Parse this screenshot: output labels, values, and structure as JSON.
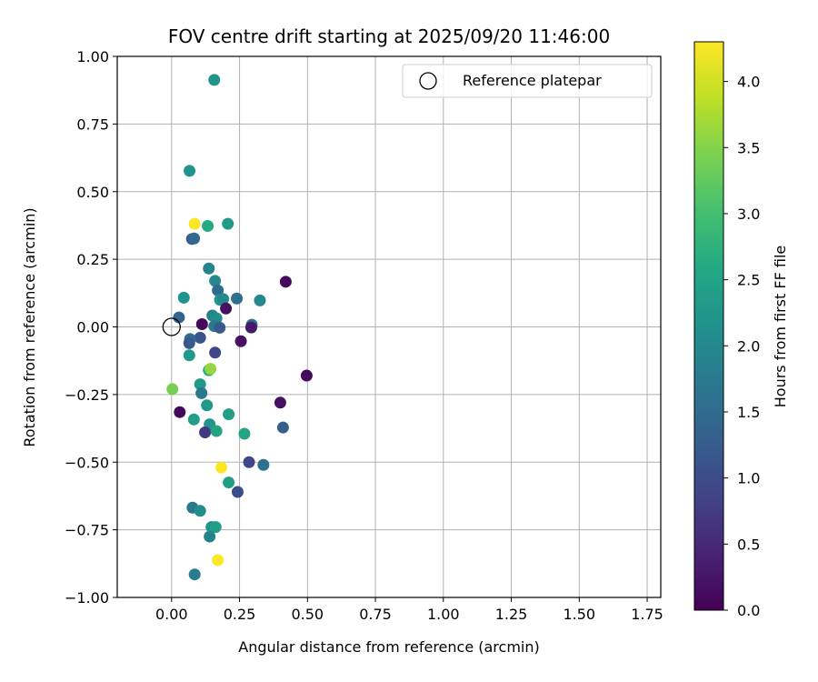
{
  "chart_data": {
    "type": "scatter",
    "title": "FOV centre drift starting at 2025/09/20 11:46:00",
    "xlabel": "Angular distance from reference (arcmin)",
    "ylabel": "Rotation from reference (arcmin)",
    "xlim": [
      -0.2,
      1.8
    ],
    "ylim": [
      -1.0,
      1.0
    ],
    "xticks": [
      0.0,
      0.25,
      0.5,
      0.75,
      1.0,
      1.25,
      1.5,
      1.75
    ],
    "xtick_labels": [
      "0.00",
      "0.25",
      "0.50",
      "0.75",
      "1.00",
      "1.25",
      "1.50",
      "1.75"
    ],
    "yticks": [
      -1.0,
      -0.75,
      -0.5,
      -0.25,
      0.0,
      0.25,
      0.5,
      0.75,
      1.0
    ],
    "ytick_labels": [
      "−1.00",
      "−0.75",
      "−0.50",
      "−0.25",
      "0.00",
      "0.25",
      "0.50",
      "0.75",
      "1.00"
    ],
    "grid": true,
    "legend": {
      "position": "top-right",
      "entries": [
        "Reference platepar"
      ]
    },
    "reference_point": {
      "x": 0.0,
      "y": 0.0,
      "label": "Reference platepar"
    },
    "colorbar": {
      "label": "Hours from first FF file",
      "colormap": "viridis",
      "range": [
        0.0,
        4.3
      ],
      "ticks": [
        0.0,
        0.5,
        1.0,
        1.5,
        2.0,
        2.5,
        3.0,
        3.5,
        4.0
      ],
      "tick_labels": [
        "0.0",
        "0.5",
        "1.0",
        "1.5",
        "2.0",
        "2.5",
        "3.0",
        "3.5",
        "4.0"
      ]
    },
    "points": [
      {
        "x": 0.157,
        "y": 0.913,
        "c": 2.2
      },
      {
        "x": 0.066,
        "y": 0.577,
        "c": 2.2
      },
      {
        "x": 0.085,
        "y": 0.381,
        "c": 4.3
      },
      {
        "x": 0.133,
        "y": 0.373,
        "c": 2.6
      },
      {
        "x": 0.207,
        "y": 0.381,
        "c": 2.3
      },
      {
        "x": 0.075,
        "y": 0.325,
        "c": 1.2
      },
      {
        "x": 0.083,
        "y": 0.327,
        "c": 1.5
      },
      {
        "x": 0.137,
        "y": 0.216,
        "c": 1.9
      },
      {
        "x": 0.16,
        "y": 0.17,
        "c": 2.0
      },
      {
        "x": 0.42,
        "y": 0.167,
        "c": 0.1
      },
      {
        "x": 0.17,
        "y": 0.135,
        "c": 1.5
      },
      {
        "x": 0.045,
        "y": 0.108,
        "c": 2.2
      },
      {
        "x": 0.178,
        "y": 0.1,
        "c": 2.2
      },
      {
        "x": 0.19,
        "y": 0.103,
        "c": 2.0
      },
      {
        "x": 0.24,
        "y": 0.105,
        "c": 1.6
      },
      {
        "x": 0.325,
        "y": 0.098,
        "c": 2.0
      },
      {
        "x": 0.2,
        "y": 0.068,
        "c": 0.2
      },
      {
        "x": 0.15,
        "y": 0.042,
        "c": 1.9
      },
      {
        "x": 0.165,
        "y": 0.032,
        "c": 2.1
      },
      {
        "x": 0.027,
        "y": 0.035,
        "c": 1.4
      },
      {
        "x": 0.112,
        "y": 0.01,
        "c": 0.1
      },
      {
        "x": 0.157,
        "y": 0.003,
        "c": 1.7
      },
      {
        "x": 0.177,
        "y": -0.003,
        "c": 1.2
      },
      {
        "x": 0.295,
        "y": 0.008,
        "c": 1.6
      },
      {
        "x": 0.293,
        "y": -0.002,
        "c": 0.3
      },
      {
        "x": 0.105,
        "y": -0.04,
        "c": 1.1
      },
      {
        "x": 0.068,
        "y": -0.045,
        "c": 1.5
      },
      {
        "x": 0.065,
        "y": -0.06,
        "c": 1.2
      },
      {
        "x": 0.255,
        "y": -0.053,
        "c": 0.2
      },
      {
        "x": 0.16,
        "y": -0.095,
        "c": 0.9
      },
      {
        "x": 0.065,
        "y": -0.105,
        "c": 2.3
      },
      {
        "x": 0.137,
        "y": -0.16,
        "c": 2.6
      },
      {
        "x": 0.143,
        "y": -0.155,
        "c": 3.6
      },
      {
        "x": 0.497,
        "y": -0.18,
        "c": 0.1
      },
      {
        "x": 0.105,
        "y": -0.212,
        "c": 2.3
      },
      {
        "x": 0.003,
        "y": -0.23,
        "c": 3.4
      },
      {
        "x": 0.11,
        "y": -0.245,
        "c": 1.7
      },
      {
        "x": 0.4,
        "y": -0.28,
        "c": 0.2
      },
      {
        "x": 0.13,
        "y": -0.29,
        "c": 2.3
      },
      {
        "x": 0.03,
        "y": -0.315,
        "c": 0.1
      },
      {
        "x": 0.21,
        "y": -0.323,
        "c": 2.4
      },
      {
        "x": 0.082,
        "y": -0.342,
        "c": 2.4
      },
      {
        "x": 0.14,
        "y": -0.36,
        "c": 2.2
      },
      {
        "x": 0.41,
        "y": -0.372,
        "c": 1.3
      },
      {
        "x": 0.123,
        "y": -0.39,
        "c": 0.7
      },
      {
        "x": 0.165,
        "y": -0.385,
        "c": 2.5
      },
      {
        "x": 0.268,
        "y": -0.395,
        "c": 2.5
      },
      {
        "x": 0.285,
        "y": -0.5,
        "c": 0.9
      },
      {
        "x": 0.338,
        "y": -0.51,
        "c": 1.6
      },
      {
        "x": 0.183,
        "y": -0.52,
        "c": 4.3
      },
      {
        "x": 0.21,
        "y": -0.575,
        "c": 2.4
      },
      {
        "x": 0.243,
        "y": -0.61,
        "c": 1.0
      },
      {
        "x": 0.077,
        "y": -0.668,
        "c": 1.7
      },
      {
        "x": 0.105,
        "y": -0.68,
        "c": 2.1
      },
      {
        "x": 0.147,
        "y": -0.74,
        "c": 2.2
      },
      {
        "x": 0.162,
        "y": -0.74,
        "c": 2.4
      },
      {
        "x": 0.14,
        "y": -0.775,
        "c": 1.9
      },
      {
        "x": 0.17,
        "y": -0.862,
        "c": 4.3
      },
      {
        "x": 0.085,
        "y": -0.915,
        "c": 1.8
      }
    ]
  }
}
